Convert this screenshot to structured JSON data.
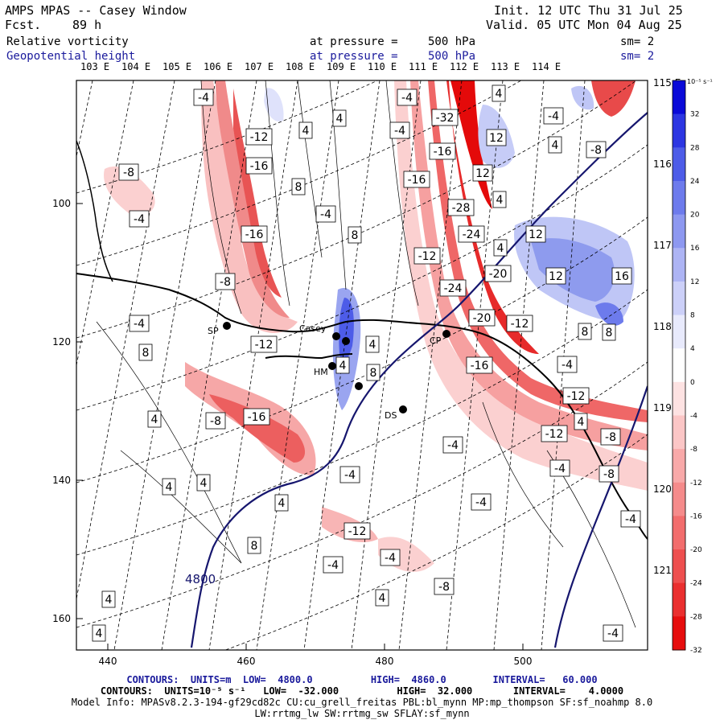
{
  "header": {
    "title": "AMPS MPAS -- Casey Window",
    "forecast_label": "Fcst.",
    "forecast_value": "89 h",
    "init": "Init. 12 UTC Thu 31 Jul 25",
    "valid": "Valid. 05 UTC Mon 04 Aug 25",
    "field1": {
      "name": "Relative vorticity",
      "pressure_label": "at pressure =",
      "pressure_value": "500 hPa",
      "sm": "sm= 2"
    },
    "field2": {
      "name": "Geopotential height",
      "pressure_label": "at pressure =",
      "pressure_value": "500 hPa",
      "sm": "sm= 2"
    }
  },
  "map": {
    "lon_labels_top": [
      "103 E",
      "104 E",
      "105 E",
      "106 E",
      "107 E",
      "108 E",
      "109 E",
      "110 E",
      "111 E",
      "112 E",
      "113 E",
      "114 E"
    ],
    "lon_labels_right": [
      "115 E",
      "116 E",
      "117 E",
      "118 E",
      "119 E",
      "120 E",
      "121 E"
    ],
    "x_ticks": [
      "440",
      "460",
      "480",
      "500"
    ],
    "y_ticks": [
      "100",
      "120",
      "140",
      "160"
    ],
    "stations": [
      "SP",
      "Casey",
      "HM",
      "DS",
      "CP"
    ],
    "height_contour_label": "4800",
    "vorticity_labels": [
      "-4",
      "4",
      "-12",
      "-16",
      "-8",
      "8",
      "-32",
      "-28",
      "-24",
      "-20",
      "12",
      "16",
      "-4",
      "4",
      "8",
      "12",
      "-16",
      "-12"
    ]
  },
  "colorbar": {
    "unit_label": "10⁻⁵ s⁻¹",
    "ticks": [
      "32",
      "28",
      "24",
      "20",
      "16",
      "12",
      "8",
      "4",
      "0",
      "-4",
      "-8",
      "-12",
      "-16",
      "-20",
      "-24",
      "-28",
      "-32"
    ],
    "colors": [
      "#0a0ad8",
      "#2c36e2",
      "#4d5ce8",
      "#6d7bec",
      "#8d98f0",
      "#adb4f4",
      "#ccd0f8",
      "#e8eafc",
      "#ffffff",
      "#fde2e2",
      "#fbc6c6",
      "#f8a9a9",
      "#f58b8b",
      "#f26d6d",
      "#ee4f4f",
      "#ea2f2f",
      "#e60d0d"
    ]
  },
  "footer": {
    "line1": "CONTOURS:  UNITS=m  LOW=  4800.0          HIGH=  4860.0        INTERVAL=   60.000",
    "line2": "CONTOURS:  UNITS=10⁻⁵ s⁻¹   LOW=  -32.000          HIGH=  32.000       INTERVAL=    4.0000",
    "line3": "Model Info: MPASv8.2.3-194-gf29cd82c CU:cu_grell_freitas PBL:bl_mynn MP:mp_thompson SF:sf_noahmp 8.0",
    "line4": "LW:rrtmg_lw SW:rrtmg_sw SFLAY:sf_mynn"
  }
}
